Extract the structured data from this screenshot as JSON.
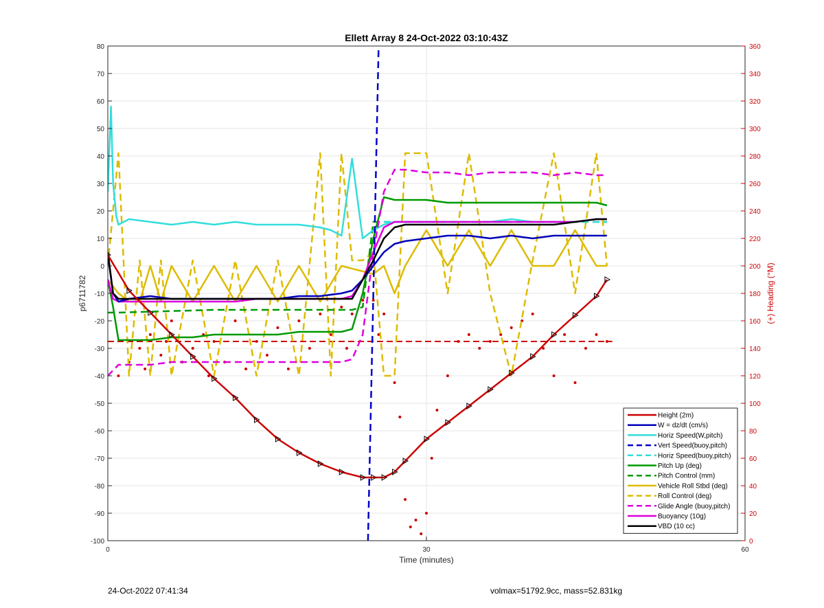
{
  "chart_data": {
    "type": "line",
    "title": "Ellett Array 8 24-Oct-2022 03:10:43Z",
    "xlabel": "Time (minutes)",
    "ylabel": "p6711782",
    "y2label": "(+) Heading (°M)",
    "xlim": [
      0,
      60
    ],
    "ylim": [
      -100,
      80
    ],
    "y2lim": [
      0,
      360
    ],
    "xticks": [
      0,
      30,
      60
    ],
    "yticks": [
      -100,
      -90,
      -80,
      -70,
      -60,
      -50,
      -40,
      -30,
      -20,
      -10,
      0,
      10,
      20,
      30,
      40,
      50,
      60,
      70,
      80
    ],
    "y2ticks": [
      0,
      20,
      40,
      60,
      80,
      100,
      120,
      140,
      160,
      180,
      200,
      220,
      240,
      260,
      280,
      300,
      320,
      340,
      360
    ],
    "grid": true,
    "legend_position": "bottom-right",
    "series": [
      {
        "name": "Height (2m)",
        "color": "#cc0000",
        "dash": "solid",
        "markers": "triangle",
        "x": [
          0,
          2,
          4,
          6,
          8,
          10,
          12,
          14,
          16,
          18,
          20,
          22,
          24,
          25,
          26,
          27,
          28,
          30,
          32,
          34,
          36,
          38,
          40,
          42,
          44,
          46,
          47
        ],
        "y": [
          4,
          -9,
          -17,
          -25,
          -33,
          -41,
          -48,
          -56,
          -63,
          -68,
          -72,
          -75,
          -77,
          -77,
          -77,
          -75,
          -71,
          -63,
          -57,
          -51,
          -45,
          -39,
          -33,
          -25,
          -18,
          -11,
          -5
        ]
      },
      {
        "name": "W = dz/dt (cm/s)",
        "color": "#0000bb",
        "dash": "solid",
        "x": [
          0,
          0.5,
          1,
          2,
          4,
          6,
          8,
          10,
          12,
          14,
          16,
          18,
          20,
          22,
          23,
          24,
          25,
          26,
          27,
          28,
          30,
          32,
          34,
          36,
          38,
          40,
          42,
          44,
          46,
          47
        ],
        "y": [
          4,
          -10,
          -13,
          -12,
          -11,
          -12,
          -12,
          -12,
          -12,
          -12,
          -12,
          -11,
          -11,
          -10,
          -9,
          -5,
          0,
          5,
          8,
          9,
          10,
          11,
          11,
          10,
          11,
          10,
          11,
          11,
          11,
          11
        ]
      },
      {
        "name": "Horiz Speed(W,pitch)",
        "color": "#33dddd",
        "dash": "solid",
        "x": [
          0,
          0.3,
          0.5,
          0.8,
          1,
          2,
          4,
          6,
          8,
          10,
          12,
          14,
          16,
          18,
          20,
          21,
          22,
          23,
          24,
          25,
          26,
          27,
          28,
          30,
          32,
          34,
          36,
          38,
          40,
          42,
          44,
          46,
          47
        ],
        "y": [
          27,
          58,
          30,
          18,
          15,
          17,
          16,
          15,
          16,
          15,
          16,
          15,
          15,
          15,
          14,
          13,
          11,
          39,
          10,
          13,
          15,
          16,
          16,
          16,
          16,
          16,
          16,
          17,
          16,
          16,
          16,
          17,
          17
        ]
      },
      {
        "name": "Vert Speed(buoy,pitch)",
        "color": "#0000cc",
        "dash": "dash",
        "x": [
          24.5,
          25,
          25.5
        ],
        "y": [
          -100,
          -10,
          80
        ]
      },
      {
        "name": "Horiz Speed(buoy,pitch)",
        "color": "#33dddd",
        "dash": "dash",
        "x": [
          26,
          30,
          35,
          40,
          45,
          47
        ],
        "y": [
          16,
          16,
          16,
          16,
          16,
          16
        ]
      },
      {
        "name": "Pitch Up (deg)",
        "color": "#009900",
        "dash": "solid",
        "x": [
          0,
          0.5,
          1,
          2,
          4,
          6,
          8,
          10,
          12,
          14,
          16,
          18,
          20,
          22,
          23,
          24,
          25,
          26,
          27,
          28,
          30,
          32,
          34,
          36,
          38,
          40,
          42,
          44,
          46,
          47
        ],
        "y": [
          -5,
          -15,
          -27,
          -27,
          -27,
          -26,
          -26,
          -25,
          -25,
          -25,
          -25,
          -24,
          -24,
          -24,
          -23,
          -10,
          10,
          25,
          24,
          24,
          24,
          23,
          23,
          23,
          23,
          23,
          23,
          23,
          23,
          22
        ]
      },
      {
        "name": "Pitch Control (mm)",
        "color": "#009900",
        "dash": "dash",
        "x": [
          0,
          1,
          10,
          20,
          23,
          24,
          25,
          30,
          40,
          47
        ],
        "y": [
          -17,
          -17,
          -16,
          -16,
          -16,
          -15,
          16,
          16,
          16,
          16
        ]
      },
      {
        "name": "Vehicle Roll Stbd (deg)",
        "color": "#ddbb00",
        "dash": "solid",
        "x": [
          0,
          1,
          2,
          3,
          4,
          5,
          6,
          8,
          10,
          12,
          14,
          16,
          18,
          20,
          22,
          24,
          25,
          26,
          27,
          28,
          30,
          32,
          34,
          36,
          38,
          40,
          42,
          44,
          46,
          47
        ],
        "y": [
          -5,
          -10,
          -13,
          -13,
          0,
          -13,
          0,
          -13,
          0,
          -13,
          0,
          -13,
          0,
          -13,
          0,
          -2,
          -3,
          0,
          -10,
          0,
          13,
          0,
          13,
          0,
          13,
          0,
          0,
          13,
          0,
          0
        ]
      },
      {
        "name": "Roll Control (deg)",
        "color": "#ddbb00",
        "dash": "dash",
        "x": [
          0,
          1,
          2,
          3,
          4,
          5,
          6,
          8,
          10,
          12,
          14,
          16,
          18,
          20,
          21,
          22,
          23,
          24,
          25,
          26,
          27,
          28,
          30,
          32,
          34,
          36,
          38,
          40,
          42,
          44,
          46,
          47
        ],
        "y": [
          0,
          41,
          -40,
          2,
          -40,
          2,
          -40,
          2,
          -40,
          2,
          -40,
          2,
          -40,
          41,
          -40,
          41,
          2,
          2,
          5,
          -40,
          -40,
          41,
          41,
          -10,
          41,
          -10,
          -40,
          2,
          41,
          -10,
          41,
          0
        ]
      },
      {
        "name": "Glide Angle (buoy,pitch)",
        "color": "#dd00dd",
        "dash": "dash",
        "x": [
          0,
          1,
          2,
          4,
          6,
          8,
          10,
          12,
          14,
          16,
          18,
          20,
          22,
          23,
          24,
          25,
          26,
          27,
          28,
          30,
          32,
          34,
          36,
          38,
          40,
          42,
          44,
          46,
          47
        ],
        "y": [
          -40,
          -36,
          -36,
          -36,
          -35,
          -35,
          -35,
          -35,
          -35,
          -35,
          -35,
          -35,
          -35,
          -34,
          -25,
          5,
          27,
          35,
          35,
          34,
          34,
          33,
          34,
          34,
          34,
          33,
          34,
          33,
          33
        ]
      },
      {
        "name": "Buoyancy (10g)",
        "color": "#dd00dd",
        "dash": "solid",
        "x": [
          0,
          0.5,
          1,
          2,
          4,
          6,
          8,
          10,
          12,
          14,
          16,
          18,
          20,
          22,
          23,
          24,
          25,
          26,
          27,
          28,
          30,
          32,
          34,
          36,
          38,
          40,
          42,
          44,
          46,
          47
        ],
        "y": [
          -5,
          -12,
          -13,
          -13,
          -13,
          -13,
          -13,
          -13,
          -13,
          -12,
          -12,
          -12,
          -12,
          -12,
          -11,
          -5,
          5,
          14,
          16,
          16,
          16,
          16,
          16,
          16,
          16,
          16,
          16,
          16,
          17,
          17
        ]
      },
      {
        "name": "VBD (10 cc)",
        "color": "#000000",
        "dash": "solid",
        "x": [
          0,
          0.5,
          1,
          2,
          4,
          6,
          8,
          10,
          12,
          14,
          16,
          18,
          20,
          22,
          23,
          24,
          25,
          26,
          27,
          28,
          30,
          32,
          34,
          36,
          38,
          40,
          42,
          44,
          46,
          47
        ],
        "y": [
          5,
          -10,
          -12,
          -12,
          -12,
          -12,
          -12,
          -12,
          -12,
          -12,
          -12,
          -12,
          -12,
          -12,
          -12,
          -5,
          2,
          10,
          14,
          15,
          15,
          15,
          15,
          15,
          15,
          15,
          15,
          16,
          17,
          17
        ]
      }
    ],
    "reference_line_y": -27.5,
    "heading_points": {
      "color": "#cc0000",
      "x": [
        1,
        2,
        3,
        3.5,
        4,
        5,
        5.5,
        6,
        7,
        8,
        9,
        9.5,
        10,
        11,
        12,
        13,
        14,
        15,
        16,
        17,
        18,
        19,
        20,
        21,
        22,
        22.5,
        23,
        24,
        25,
        25.5,
        26,
        27,
        27.5,
        28,
        28.5,
        29,
        29.5,
        30,
        30.5,
        31,
        32,
        33,
        34,
        35,
        36,
        37,
        38,
        39,
        40,
        41,
        42,
        43,
        44,
        45,
        46,
        47
      ],
      "y": [
        120,
        130,
        140,
        125,
        150,
        135,
        145,
        160,
        130,
        140,
        150,
        120,
        145,
        130,
        160,
        125,
        145,
        135,
        155,
        125,
        160,
        140,
        165,
        150,
        170,
        140,
        165,
        175,
        175,
        150,
        165,
        115,
        90,
        30,
        10,
        15,
        5,
        20,
        60,
        95,
        120,
        145,
        150,
        140,
        145,
        150,
        155,
        160,
        165,
        140,
        120,
        150,
        115,
        140,
        150,
        145
      ]
    }
  },
  "footer": {
    "timestamp": "24-Oct-2022 07:41:34",
    "volinfo": "volmax=51792.9cc, mass=52.831kg"
  }
}
